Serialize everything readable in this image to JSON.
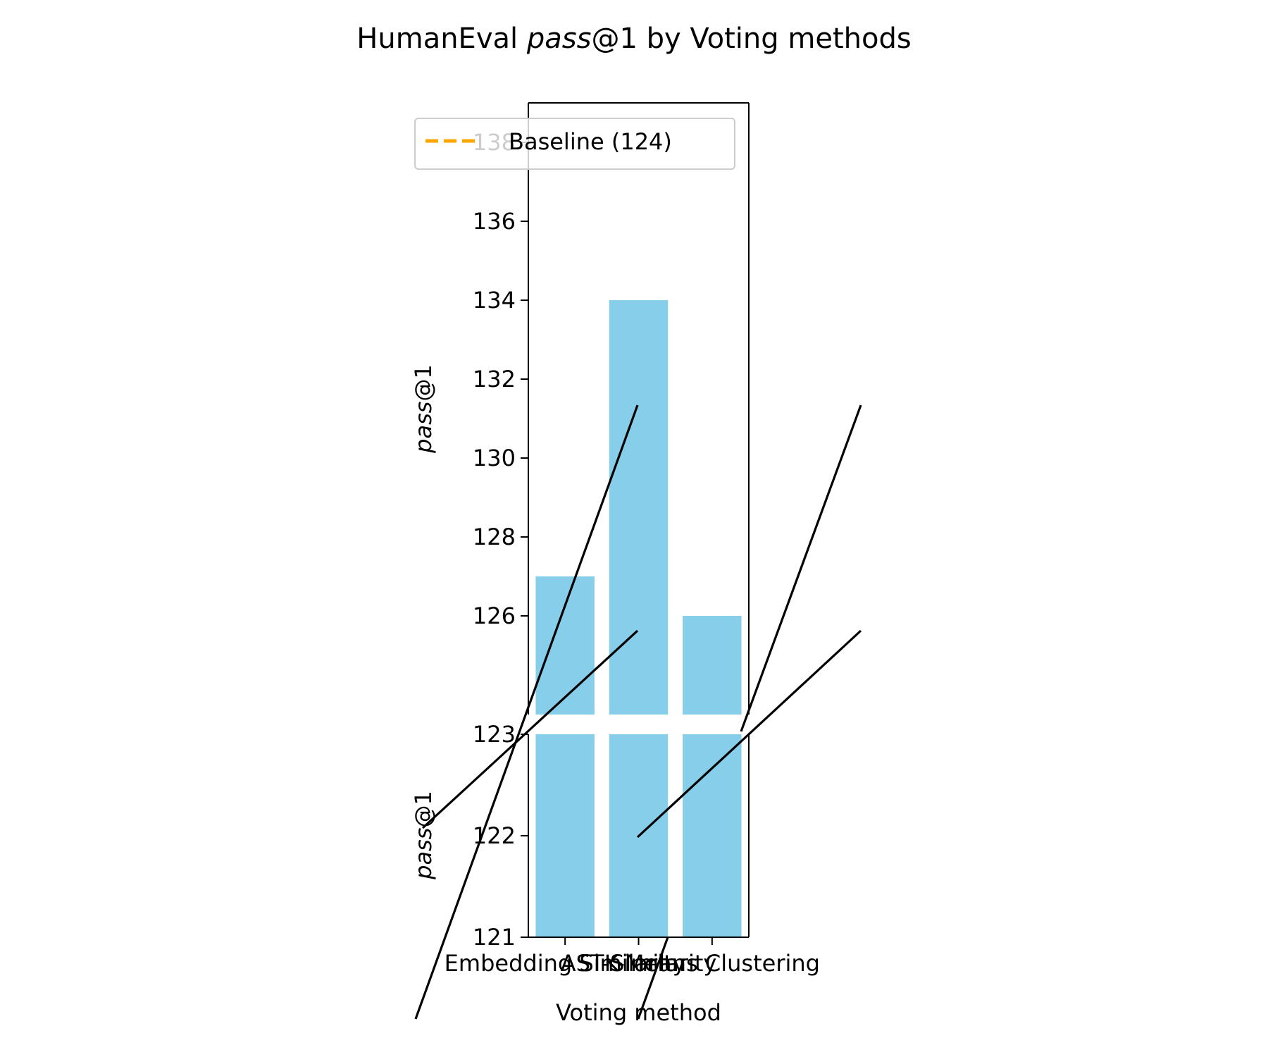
{
  "chart_data": {
    "type": "bar",
    "title_prefix": "HumanEval ",
    "title_metric": "pass",
    "title_suffix": "@1 by Voting methods",
    "xlabel": "Voting method",
    "ylabel_metric": "pass",
    "ylabel_suffix": "@1",
    "categories": [
      "Embedding Similarity",
      "AST-Similarity",
      "K-Means Clustering"
    ],
    "values": [
      127,
      134,
      126
    ],
    "bar_color": "#87CEEB",
    "broken_axis": {
      "upper_ylim": [
        123.5,
        139
      ],
      "upper_ticks": [
        126,
        128,
        130,
        132,
        134,
        136,
        138
      ],
      "lower_ylim": [
        121,
        123
      ],
      "lower_ticks": [
        121,
        122,
        123
      ]
    },
    "baseline": {
      "value": 124,
      "label": "Baseline (124)",
      "color": "#FFA500",
      "linestyle": "dashed"
    },
    "legend_placement": "top-center",
    "grid": false
  }
}
